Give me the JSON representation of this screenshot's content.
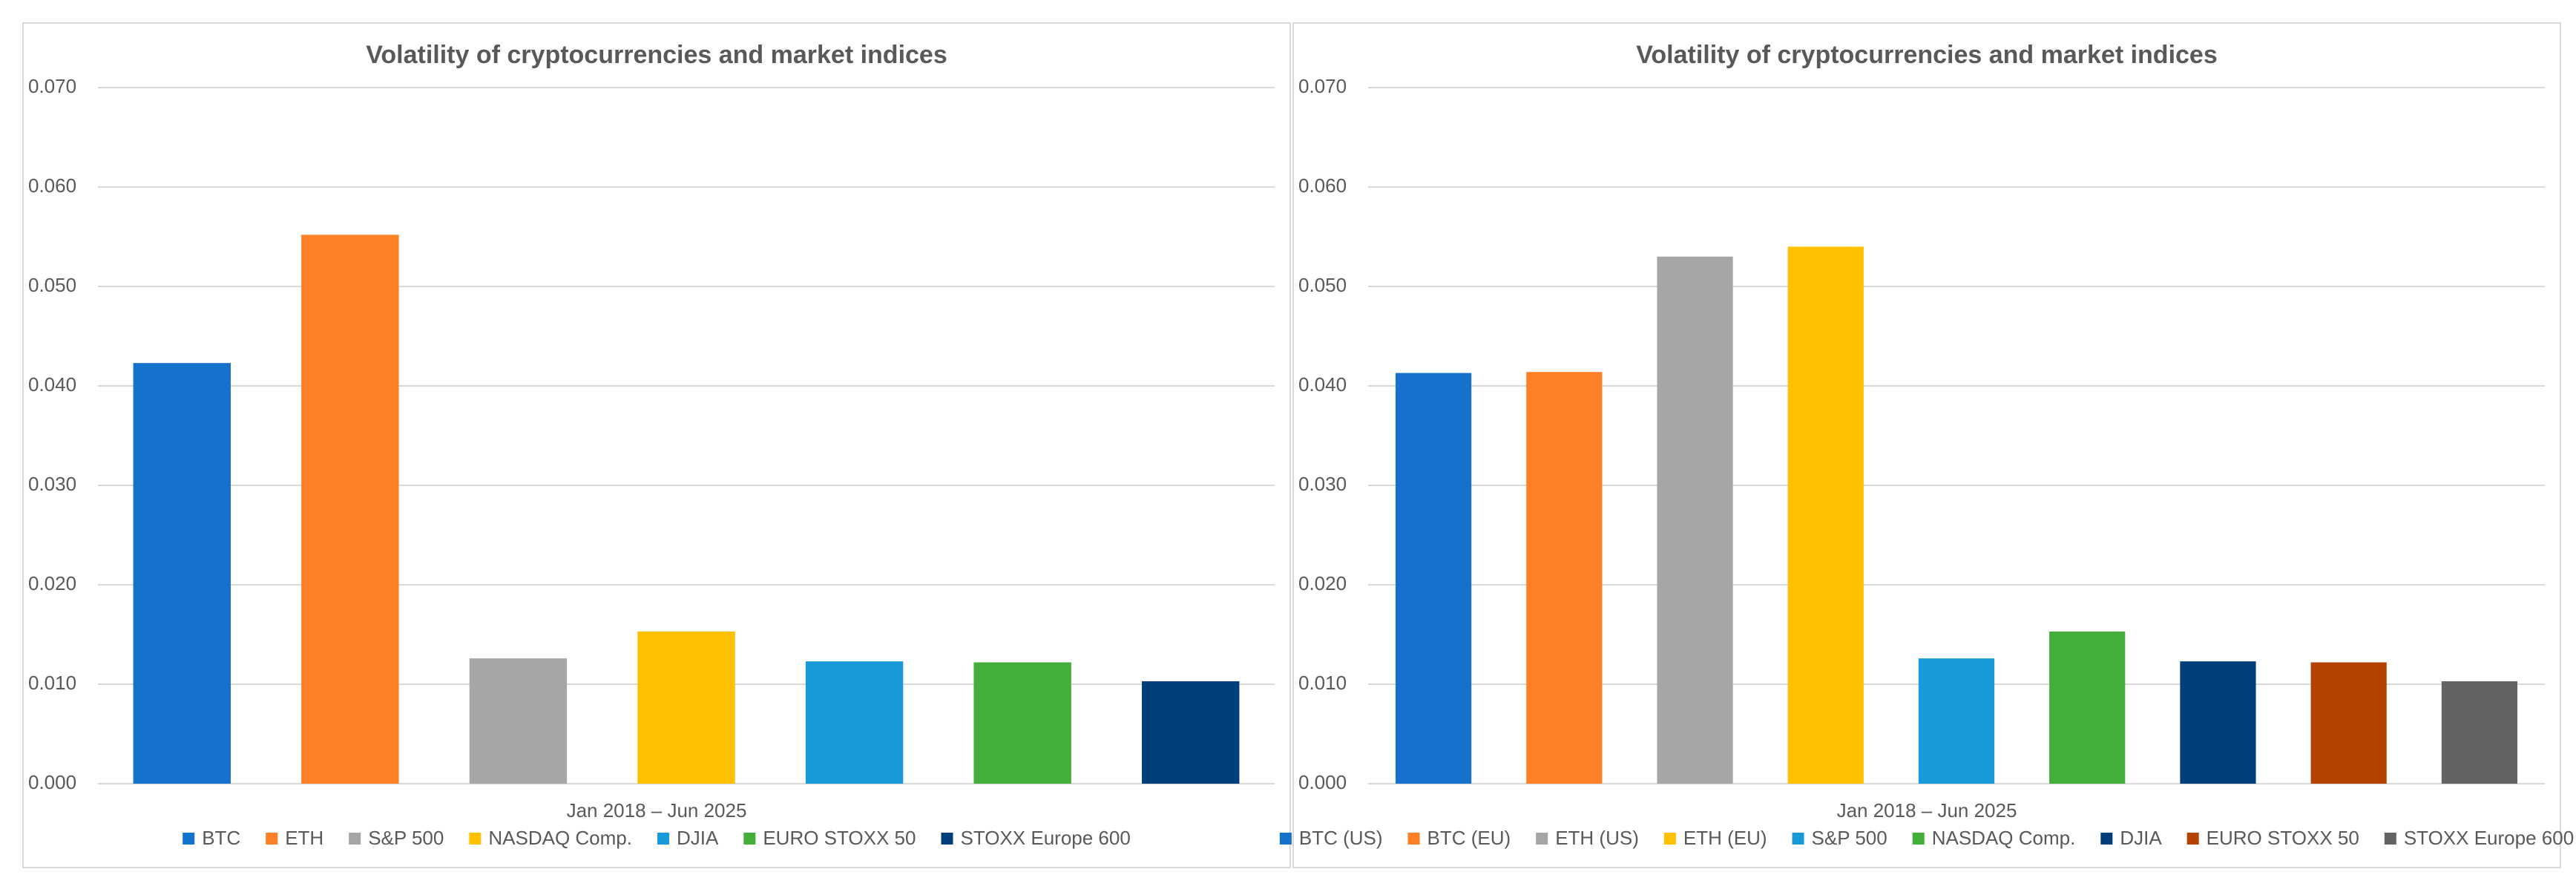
{
  "chart_data": [
    {
      "type": "bar",
      "title": "Volatility of cryptocurrencies and market indices",
      "xlabel": "Jan 2018 – Jun 2025",
      "ylabel": "",
      "ylim": [
        0,
        0.07
      ],
      "yticks": [
        "0.000",
        "0.010",
        "0.020",
        "0.030",
        "0.040",
        "0.050",
        "0.060",
        "0.070"
      ],
      "grid": true,
      "legend_position": "bottom",
      "series": [
        {
          "name": "BTC",
          "value": 0.0423,
          "color": "#1572CC"
        },
        {
          "name": "ETH",
          "value": 0.0552,
          "color": "#FF7F27"
        },
        {
          "name": "S&P 500",
          "value": 0.0126,
          "color": "#A6A6A6"
        },
        {
          "name": "NASDAQ Comp.",
          "value": 0.0153,
          "color": "#FFC000"
        },
        {
          "name": "DJIA",
          "value": 0.0123,
          "color": "#179AD7"
        },
        {
          "name": "EURO STOXX 50",
          "value": 0.0122,
          "color": "#43AE3A"
        },
        {
          "name": "STOXX Europe 600",
          "value": 0.0103,
          "color": "#003F7A"
        }
      ]
    },
    {
      "type": "bar",
      "title": "Volatility of cryptocurrencies and market indices",
      "xlabel": "Jan 2018 – Jun 2025",
      "ylabel": "",
      "ylim": [
        0,
        0.07
      ],
      "yticks": [
        "0.000",
        "0.010",
        "0.020",
        "0.030",
        "0.040",
        "0.050",
        "0.060",
        "0.070"
      ],
      "grid": true,
      "legend_position": "bottom",
      "series": [
        {
          "name": "BTC (US)",
          "value": 0.0413,
          "color": "#1572CC"
        },
        {
          "name": "BTC (EU)",
          "value": 0.0414,
          "color": "#FF7F27"
        },
        {
          "name": "ETH (US)",
          "value": 0.053,
          "color": "#A6A6A6"
        },
        {
          "name": "ETH (EU)",
          "value": 0.054,
          "color": "#FFC000"
        },
        {
          "name": "S&P 500",
          "value": 0.0126,
          "color": "#179AD7"
        },
        {
          "name": "NASDAQ Comp.",
          "value": 0.0153,
          "color": "#43AE3A"
        },
        {
          "name": "DJIA",
          "value": 0.0123,
          "color": "#003F7A"
        },
        {
          "name": "EURO STOXX 50",
          "value": 0.0122,
          "color": "#B44300"
        },
        {
          "name": "STOXX Europe 600",
          "value": 0.0103,
          "color": "#636363"
        }
      ]
    }
  ]
}
